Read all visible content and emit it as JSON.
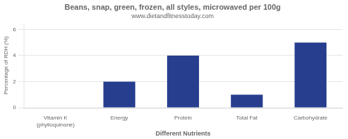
{
  "chart_data": {
    "type": "bar",
    "title": "Beans, snap, green, frozen, all styles, microwaved per 100g",
    "subtitle": "www.dietandfitnesstoday.com",
    "xlabel": "Different Nutrients",
    "ylabel": "Percentage of RDH (%)",
    "categories": [
      "Vitamin K (phylloquinone)",
      "Energy",
      "Protein",
      "Total Fat",
      "Carbohydrate"
    ],
    "values": [
      0,
      2,
      4,
      1,
      5
    ],
    "color": "#273d8e",
    "ylim": [
      0,
      6.5
    ],
    "yticks": [
      0,
      2,
      4,
      6
    ],
    "grid": true
  }
}
